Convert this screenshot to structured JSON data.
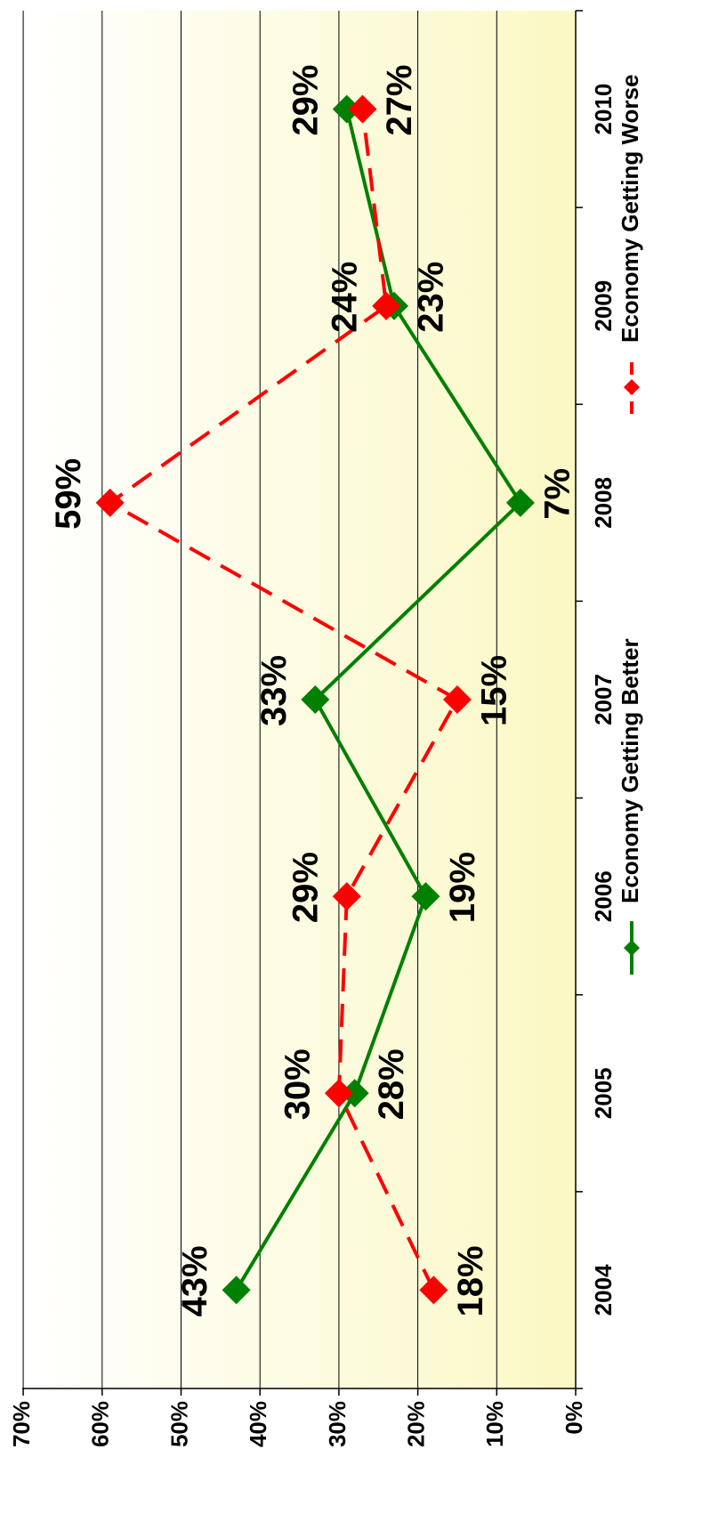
{
  "chart_data": {
    "type": "line",
    "orientation": "rotated-90-ccw",
    "categories": [
      "2004",
      "2005",
      "2006",
      "2007",
      "2008",
      "2009",
      "2010"
    ],
    "ylim": [
      0,
      70
    ],
    "y_ticks": [
      "0%",
      "10%",
      "20%",
      "30%",
      "40%",
      "50%",
      "60%",
      "70%"
    ],
    "grid": true,
    "legend_position": "bottom",
    "series": [
      {
        "name": "Economy Getting Better",
        "color": "#008000",
        "line_style": "solid",
        "marker": "diamond",
        "values": [
          43,
          28,
          19,
          33,
          7,
          23,
          29
        ],
        "labels": [
          "43%",
          "28%",
          "19%",
          "33%",
          "7%",
          "23%",
          "29%"
        ]
      },
      {
        "name": "Economy Getting Worse",
        "color": "#ff0000",
        "line_style": "dashed",
        "marker": "diamond",
        "values": [
          18,
          30,
          29,
          15,
          59,
          24,
          27
        ],
        "labels": [
          "18%",
          "30%",
          "29%",
          "15%",
          "59%",
          "24%",
          "27%"
        ]
      }
    ]
  }
}
